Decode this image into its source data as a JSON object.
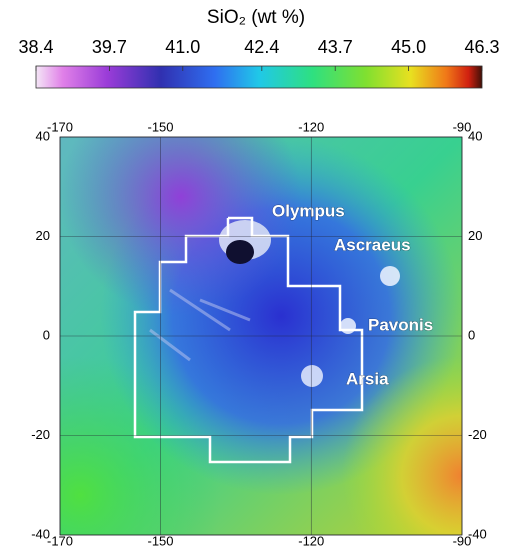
{
  "colorbar": {
    "title": "SiO₂ (wt %)",
    "lim": [
      38.4,
      46.3
    ],
    "ticks": [
      38.4,
      39.7,
      {
        "value": 41,
        "label": "41.0"
      },
      42.4,
      43.7,
      {
        "value": 45,
        "label": "45.0"
      },
      46.3
    ]
  },
  "map": {
    "xlim": [
      -170,
      -90
    ],
    "xticks": [
      -170,
      -150,
      -120,
      -90
    ],
    "ylim": [
      -40,
      40
    ],
    "yticks": [
      -40,
      -20,
      0,
      20,
      40
    ],
    "labels": [
      "Olympus",
      "Ascraeus",
      "Pavonis",
      "Arsia"
    ]
  }
}
